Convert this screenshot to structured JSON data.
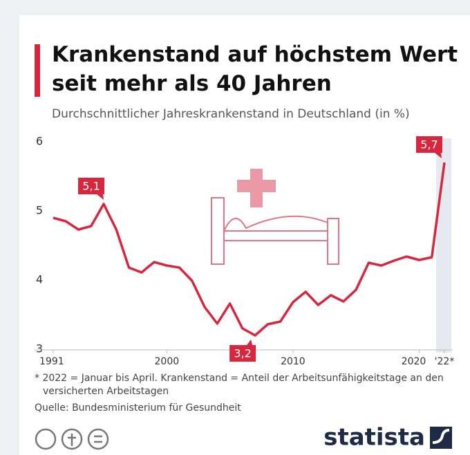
{
  "chart_data": {
    "type": "line",
    "title": "Krankenstand auf höchstem Wert seit mehr als 40 Jahren",
    "subtitle": "Durchschnittlicher Jahreskrankenstand in Deutschland (in %)",
    "x": [
      1991,
      1992,
      1993,
      1994,
      1995,
      1996,
      1997,
      1998,
      1999,
      2000,
      2001,
      2002,
      2003,
      2004,
      2005,
      2006,
      2007,
      2008,
      2009,
      2010,
      2011,
      2012,
      2013,
      2014,
      2015,
      2016,
      2017,
      2018,
      2019,
      2020,
      2021,
      2022
    ],
    "values": [
      4.9,
      4.85,
      4.73,
      4.78,
      5.1,
      4.73,
      4.18,
      4.11,
      4.26,
      4.21,
      4.18,
      3.99,
      3.61,
      3.37,
      3.66,
      3.3,
      3.2,
      3.36,
      3.4,
      3.68,
      3.83,
      3.64,
      3.78,
      3.69,
      3.86,
      4.25,
      4.21,
      4.28,
      4.34,
      4.29,
      4.33,
      5.7
    ],
    "value_labels": [
      null,
      null,
      null,
      null,
      "5,1",
      null,
      null,
      null,
      null,
      null,
      null,
      null,
      null,
      null,
      null,
      null,
      "3,2",
      null,
      null,
      null,
      null,
      null,
      null,
      null,
      null,
      null,
      null,
      null,
      null,
      null,
      null,
      "5,7"
    ],
    "color": "#d7263d",
    "xlim": [
      1991,
      2022
    ],
    "xticks": [
      1991,
      2000,
      2010,
      2020,
      {
        "value": 2022,
        "label": "'22*"
      }
    ],
    "ylim": [
      3,
      6
    ],
    "yticks": [
      3,
      4,
      5,
      6
    ],
    "grid": false,
    "footnote": "* 2022 = Januar bis April. Krankenstand = Anteil der Arbeitsunfähigkeitstage an den versicherten Arbeitstagen",
    "source": "Quelle: Bundesministerium für Gesundheit",
    "brand": "statista"
  }
}
